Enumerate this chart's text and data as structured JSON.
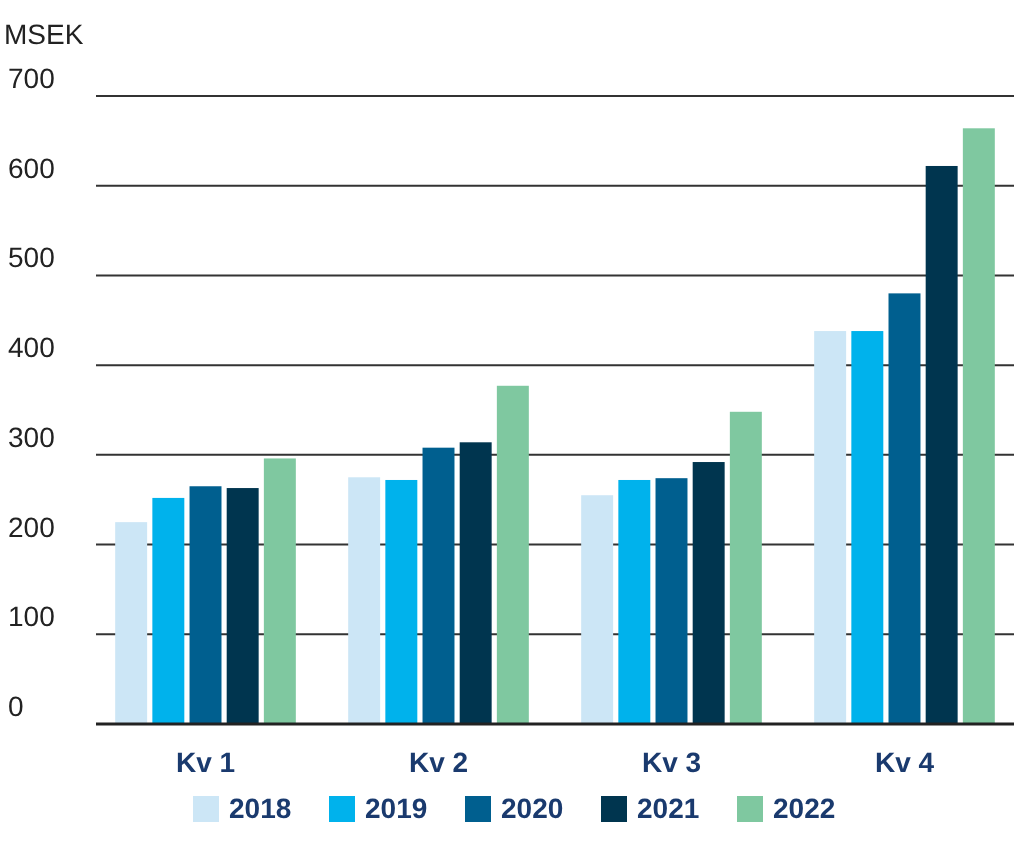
{
  "chart_data": {
    "type": "bar",
    "ylabel": "MSEK",
    "categories": [
      "Kv 1",
      "Kv 2",
      "Kv 3",
      "Kv 4"
    ],
    "series": [
      {
        "name": "2018",
        "color": "#cce6f6",
        "values": [
          225,
          275,
          255,
          438
        ]
      },
      {
        "name": "2019",
        "color": "#00b2ec",
        "values": [
          252,
          272,
          272,
          438
        ]
      },
      {
        "name": "2020",
        "color": "#005f8f",
        "values": [
          265,
          308,
          274,
          480
        ]
      },
      {
        "name": "2021",
        "color": "#00354f",
        "values": [
          263,
          314,
          292,
          622
        ]
      },
      {
        "name": "2022",
        "color": "#7fc8a0",
        "values": [
          296,
          377,
          348,
          664
        ]
      }
    ],
    "ylim": [
      0,
      700
    ],
    "yticks": [
      0,
      100,
      200,
      300,
      400,
      500,
      600,
      700
    ],
    "grid": "y",
    "legend": "bottom"
  }
}
